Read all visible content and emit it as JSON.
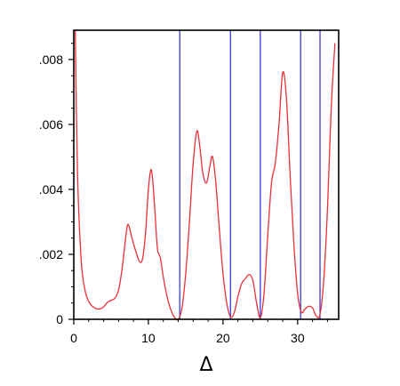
{
  "chart_data": {
    "type": "line",
    "title": "",
    "xlabel": "Δ",
    "ylabel": "",
    "xlim": [
      0,
      35.5
    ],
    "ylim": [
      0,
      0.0089
    ],
    "x_ticks": [
      0,
      10,
      20,
      30
    ],
    "x_tick_labels": [
      "0",
      "10",
      "20",
      "30"
    ],
    "y_ticks": [
      0,
      0.002,
      0.004,
      0.006,
      0.008
    ],
    "y_tick_labels": [
      "0",
      ".002",
      ".004",
      ".006",
      ".008"
    ],
    "grid": false,
    "legend": "none",
    "line_color": "#e8313a",
    "vline_color": "#2a2ad6",
    "vlines": [
      14.2,
      21.0,
      25.0,
      30.4,
      33.0
    ],
    "series": [
      {
        "x": [
          0.2,
          0.5,
          1.0,
          1.5,
          2.0,
          2.5,
          3.0,
          3.5,
          4.0,
          4.5,
          5.0,
          5.5,
          6.0,
          6.5,
          7.0,
          7.3,
          7.8,
          8.3,
          8.8,
          9.2,
          9.6,
          10.0,
          10.4,
          10.8,
          11.2,
          11.6,
          12.0,
          12.5,
          13.0,
          13.5,
          14.0,
          14.5,
          15.0,
          15.5,
          16.0,
          16.5,
          16.9,
          17.3,
          17.8,
          18.3,
          18.6,
          19.0,
          19.5,
          20.0,
          20.5,
          21.0,
          21.5,
          22.0,
          22.5,
          23.0,
          23.5,
          24.0,
          24.5,
          25.0,
          25.5,
          26.0,
          26.5,
          27.0,
          27.5,
          28.0,
          28.5,
          29.0,
          29.5,
          30.0,
          30.5,
          31.0,
          31.5,
          32.0,
          32.5,
          33.0,
          33.5,
          34.0,
          34.5,
          35.0
        ],
        "y": [
          0.0089,
          0.0045,
          0.0018,
          0.0009,
          0.00055,
          0.0004,
          0.00033,
          0.00032,
          0.00038,
          0.00052,
          0.00058,
          0.00065,
          0.0009,
          0.0016,
          0.0026,
          0.00292,
          0.0025,
          0.0021,
          0.00178,
          0.00185,
          0.0026,
          0.004,
          0.0046,
          0.0036,
          0.0022,
          0.0019,
          0.0013,
          0.0007,
          0.0003,
          6e-05,
          0.0,
          0.00035,
          0.0014,
          0.003,
          0.0048,
          0.0058,
          0.0053,
          0.0045,
          0.0042,
          0.0048,
          0.005,
          0.0043,
          0.0028,
          0.0014,
          0.0005,
          8e-05,
          0.0002,
          0.0007,
          0.0011,
          0.00125,
          0.00138,
          0.0012,
          0.0005,
          5e-05,
          0.0008,
          0.0026,
          0.0042,
          0.0048,
          0.006,
          0.0076,
          0.0068,
          0.0044,
          0.0023,
          0.0008,
          0.00022,
          0.00032,
          0.0004,
          0.00035,
          0.0001,
          0.00015,
          0.0012,
          0.0034,
          0.0065,
          0.0085
        ]
      }
    ]
  }
}
